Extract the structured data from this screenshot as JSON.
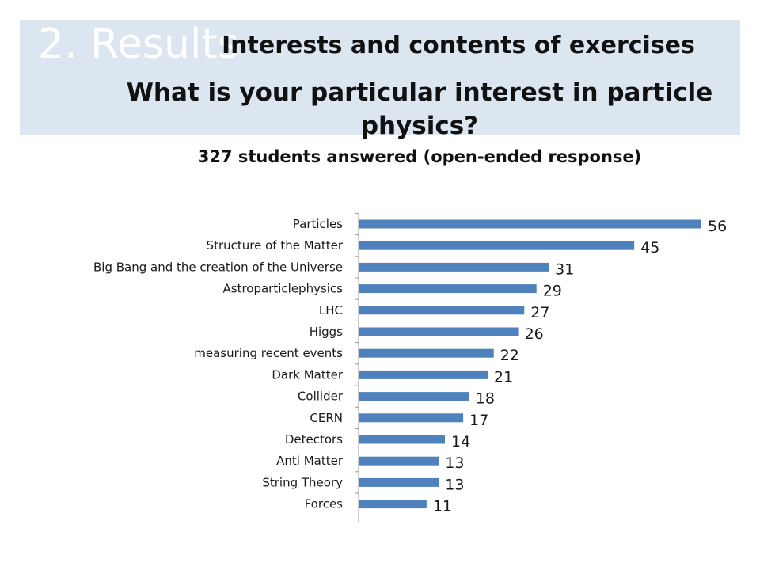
{
  "slide": {
    "section_label": "2. Results",
    "heading": "Interests and contents of exercises"
  },
  "chart_data": {
    "type": "bar",
    "orientation": "horizontal",
    "title": "What is your particular interest in particle physics?",
    "subtitle": "327 students answered (open-ended response)",
    "categories": [
      "Particles",
      "Structure of the Matter",
      "Big Bang and the creation of the Universe",
      "Astroparticlephysics",
      "LHC",
      "Higgs",
      "measuring recent events",
      "Dark Matter",
      "Collider",
      "CERN",
      "Detectors",
      "Anti Matter",
      "String Theory",
      "Forces"
    ],
    "values": [
      56,
      45,
      31,
      29,
      27,
      26,
      22,
      21,
      18,
      17,
      14,
      13,
      13,
      11
    ],
    "xlim": [
      0,
      56
    ],
    "bar_color": "#4f81bd",
    "grid": false,
    "legend": "none",
    "data_labels": true
  }
}
